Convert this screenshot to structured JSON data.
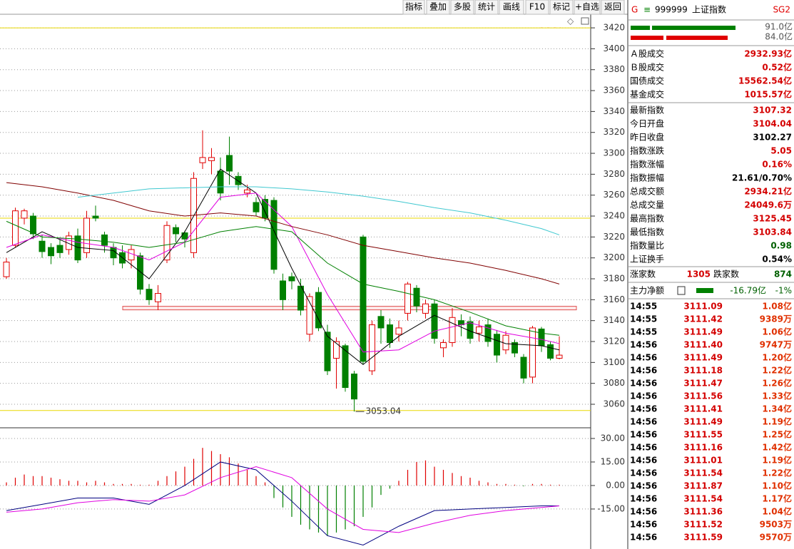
{
  "toolbar": [
    "指标",
    "叠加",
    "多股",
    "统计",
    "画线",
    "F10",
    "标记",
    "+自选",
    "返回"
  ],
  "chart_data": {
    "type": "candlestick",
    "ylim": [
      3037.5,
      3433
    ],
    "yticks": [
      3060,
      3080,
      3100,
      3120,
      3140,
      3160,
      3180,
      3200,
      3220,
      3240,
      3260,
      3280,
      3300,
      3320,
      3340,
      3360,
      3380,
      3400,
      3420
    ],
    "grid": true,
    "up_color": "#e00000",
    "down_color": "#008000",
    "candles": {
      "open": [
        3182,
        3212,
        3238,
        3240,
        3216,
        3210,
        3212,
        3208,
        3221,
        3205,
        3240,
        3222,
        3210,
        3205,
        3198,
        3202,
        3170,
        3158,
        3198,
        3229,
        3224,
        3205,
        3291,
        3293,
        3283,
        3298,
        3278,
        3262,
        3253,
        3256,
        3255,
        3178,
        3182,
        3173,
        3127,
        3167,
        3129,
        3104,
        3116,
        3089,
        3220,
        3092,
        3144,
        3136,
        3127,
        3147,
        3171,
        3147,
        3156,
        3114,
        3119,
        3140,
        3139,
        3128,
        3136,
        3127,
        3112,
        3119,
        3105,
        3086,
        3132,
        3117,
        3104
      ],
      "high": [
        3200,
        3248,
        3247,
        3243,
        3222,
        3214,
        3218,
        3225,
        3228,
        3245,
        3250,
        3225,
        3214,
        3212,
        3212,
        3205,
        3175,
        3174,
        3235,
        3232,
        3226,
        3282,
        3322,
        3305,
        3296,
        3316,
        3282,
        3270,
        3258,
        3260,
        3258,
        3185,
        3186,
        3180,
        3166,
        3172,
        3136,
        3124,
        3118,
        3092,
        3222,
        3140,
        3150,
        3142,
        3140,
        3177,
        3174,
        3160,
        3160,
        3122,
        3152,
        3146,
        3144,
        3140,
        3142,
        3131,
        3130,
        3122,
        3108,
        3135,
        3134,
        3120,
        3125
      ],
      "low": [
        3180,
        3210,
        3232,
        3218,
        3200,
        3194,
        3200,
        3203,
        3195,
        3200,
        3235,
        3205,
        3193,
        3190,
        3190,
        3165,
        3155,
        3150,
        3195,
        3215,
        3210,
        3200,
        3285,
        3280,
        3255,
        3270,
        3265,
        3258,
        3240,
        3235,
        3185,
        3150,
        3170,
        3145,
        3120,
        3130,
        3088,
        3075,
        3072,
        3053.04,
        3098,
        3088,
        3118,
        3114,
        3120,
        3140,
        3148,
        3142,
        3118,
        3105,
        3115,
        3125,
        3118,
        3120,
        3115,
        3100,
        3108,
        3105,
        3080,
        3080,
        3110,
        3102,
        3103
      ],
      "close": [
        3196,
        3245,
        3245,
        3223,
        3206,
        3202,
        3205,
        3221,
        3198,
        3238,
        3238,
        3212,
        3200,
        3195,
        3208,
        3170,
        3160,
        3166,
        3231,
        3223,
        3218,
        3276,
        3296,
        3296,
        3262,
        3283,
        3270,
        3265,
        3244,
        3238,
        3189,
        3160,
        3178,
        3150,
        3163,
        3133,
        3092,
        3120,
        3076,
        3065,
        3101,
        3136,
        3133,
        3119,
        3133,
        3175,
        3154,
        3156,
        3123,
        3119,
        3143,
        3136,
        3123,
        3134,
        3120,
        3107,
        3126,
        3109,
        3085,
        3133,
        3116,
        3104,
        3107
      ]
    },
    "ma_x": [
      0,
      4,
      8,
      12,
      16,
      20,
      24,
      28,
      32,
      36,
      40,
      44,
      48,
      52,
      56,
      60,
      62
    ],
    "series": [
      {
        "color": "#000000",
        "values": [
          3205,
          3225,
          3210,
          3207,
          3180,
          3225,
          3285,
          3262,
          3190,
          3125,
          3098,
          3125,
          3145,
          3130,
          3118,
          3116,
          3112
        ]
      },
      {
        "color": "#e000e0",
        "values": [
          3210,
          3222,
          3215,
          3210,
          3198,
          3215,
          3258,
          3262,
          3230,
          3165,
          3110,
          3112,
          3130,
          3138,
          3128,
          3122,
          3118
        ]
      },
      {
        "color": "#008000",
        "values": [
          3235,
          3220,
          3218,
          3215,
          3210,
          3215,
          3225,
          3230,
          3225,
          3195,
          3175,
          3168,
          3160,
          3148,
          3135,
          3128,
          3126
        ]
      },
      {
        "color": "#800000",
        "values": [
          3272,
          3268,
          3262,
          3255,
          3245,
          3240,
          3243,
          3240,
          3230,
          3222,
          3212,
          3206,
          3200,
          3195,
          3188,
          3180,
          3175
        ]
      },
      {
        "color": "#40c8d0",
        "values": [
          null,
          null,
          3258,
          3262,
          3266,
          3267,
          3268,
          3268,
          3266,
          3263,
          3259,
          3254,
          3248,
          3243,
          3236,
          3228,
          3222
        ]
      }
    ],
    "hlines": [
      3420,
      3238,
      3054
    ],
    "hline_color": "#e8d800",
    "band": {
      "value": 3152,
      "color": "#e05050"
    },
    "low_label": 3053.04,
    "macd": {
      "ylim": [
        -40.5,
        35.9
      ],
      "yticks": [
        {
          "value": 30,
          "label": "30.00"
        },
        {
          "value": 15,
          "label": "15.00"
        },
        {
          "value": 0,
          "label": "0.00"
        },
        {
          "value": -15,
          "label": "-15.00"
        }
      ],
      "hist": [
        2,
        5,
        7,
        6,
        6,
        5,
        4,
        3,
        3,
        2,
        3,
        2,
        1,
        1,
        1,
        0.5,
        0.5,
        3,
        6,
        9,
        12,
        17,
        24,
        22,
        20,
        18,
        14,
        10,
        6,
        2,
        -8,
        -14,
        -20,
        -25,
        -28,
        -30,
        -32,
        -30,
        -28,
        -26,
        -20,
        -14,
        -6,
        -2,
        3,
        10,
        15,
        16,
        12,
        10,
        8,
        6,
        5,
        3,
        2,
        1,
        1,
        0.5,
        -0.5,
        1,
        1,
        0.5,
        0.5
      ],
      "series": [
        {
          "color": "#000080",
          "values": [
            -16,
            -12,
            -8,
            -8,
            -12,
            0,
            15,
            10,
            -10,
            -32,
            -38,
            -26,
            -16,
            -15,
            -14,
            -13,
            -13
          ]
        },
        {
          "color": "#e000e0",
          "values": [
            -17,
            -15,
            -11,
            -9,
            -10,
            -6,
            5,
            12,
            5,
            -15,
            -28,
            -30,
            -24,
            -19,
            -16,
            -14,
            -13
          ]
        }
      ]
    }
  },
  "header": {
    "marker": "G",
    "code": "999999",
    "name": "上证指数",
    "badge": "SG2"
  },
  "bars": [
    "91.0亿",
    "84.0亿"
  ],
  "stats": [
    {
      "label": "Ａ股成交",
      "value": "2932.93亿",
      "color": "#d40000"
    },
    {
      "label": "Ｂ股成交",
      "value": "0.52亿",
      "color": "#d40000"
    },
    {
      "label": "国债成交",
      "value": "15562.54亿",
      "color": "#d40000"
    },
    {
      "label": "基金成交",
      "value": "1015.57亿",
      "color": "#d40000"
    },
    {
      "label": "最新指数",
      "value": "3107.32",
      "color": "#d40000"
    },
    {
      "label": "今日开盘",
      "value": "3104.04",
      "color": "#d40000"
    },
    {
      "label": "昨日收盘",
      "value": "3102.27",
      "color": "#000000"
    },
    {
      "label": "指数涨跌",
      "value": "5.05",
      "color": "#d40000"
    },
    {
      "label": "指数涨幅",
      "value": "0.16%",
      "color": "#d40000"
    },
    {
      "label": "指数振幅",
      "value": "21.61/0.70%",
      "color": "#000000"
    },
    {
      "label": "总成交额",
      "value": "2934.21亿",
      "color": "#d40000"
    },
    {
      "label": "总成交量",
      "value": "24049.6万",
      "color": "#d40000"
    },
    {
      "label": "最高指数",
      "value": "3125.45",
      "color": "#d40000"
    },
    {
      "label": "最低指数",
      "value": "3103.84",
      "color": "#d40000"
    },
    {
      "label": "指数量比",
      "value": "0.98",
      "color": "#006000"
    },
    {
      "label": "上证换手",
      "value": "0.54%",
      "color": "#000000"
    }
  ],
  "breadth": {
    "up_label": "涨家数",
    "up": "1305",
    "down_label": "跌家数",
    "down": "874"
  },
  "flow": {
    "label": "主力净额",
    "value": "-16.79亿",
    "pct": "-1%"
  },
  "trades": [
    [
      "14:55",
      "3111.09",
      "1.08亿"
    ],
    [
      "14:55",
      "3111.42",
      "9389万"
    ],
    [
      "14:55",
      "3111.49",
      "1.06亿"
    ],
    [
      "14:56",
      "3111.40",
      "9747万"
    ],
    [
      "14:56",
      "3111.49",
      "1.20亿"
    ],
    [
      "14:56",
      "3111.18",
      "1.22亿"
    ],
    [
      "14:56",
      "3111.47",
      "1.26亿"
    ],
    [
      "14:56",
      "3111.56",
      "1.33亿"
    ],
    [
      "14:56",
      "3111.41",
      "1.34亿"
    ],
    [
      "14:56",
      "3111.49",
      "1.19亿"
    ],
    [
      "14:56",
      "3111.55",
      "1.25亿"
    ],
    [
      "14:56",
      "3111.16",
      "1.42亿"
    ],
    [
      "14:56",
      "3111.01",
      "1.19亿"
    ],
    [
      "14:56",
      "3111.54",
      "1.22亿"
    ],
    [
      "14:56",
      "3111.87",
      "1.10亿"
    ],
    [
      "14:56",
      "3111.54",
      "1.17亿"
    ],
    [
      "14:56",
      "3111.36",
      "1.04亿"
    ],
    [
      "14:56",
      "3111.52",
      "9503万"
    ],
    [
      "14:56",
      "3111.59",
      "9570万"
    ]
  ]
}
